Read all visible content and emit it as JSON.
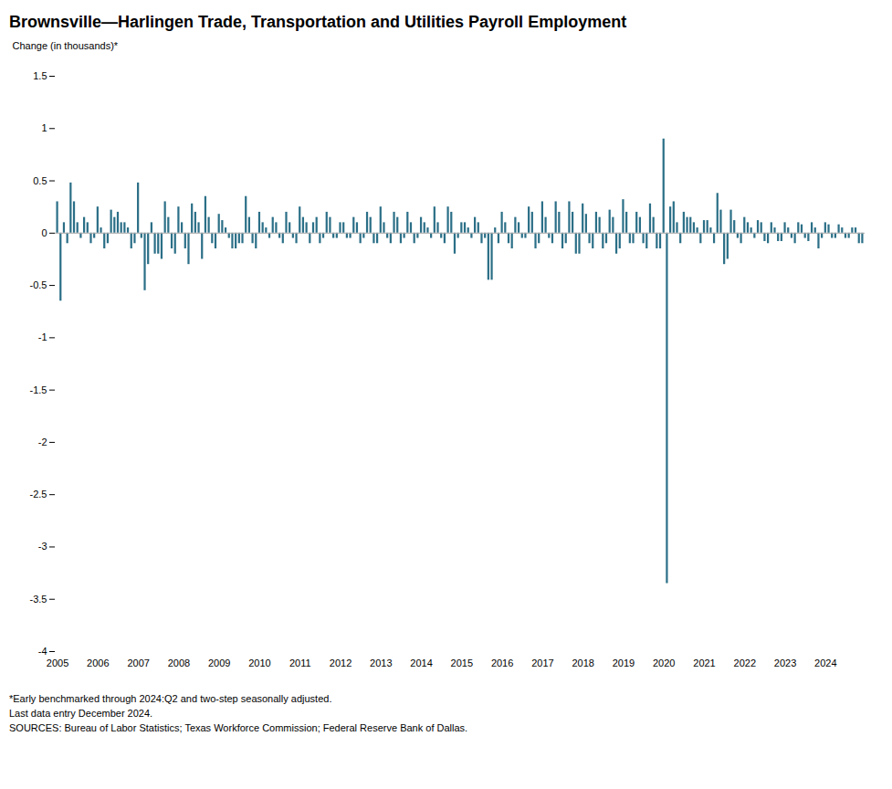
{
  "chart_data": {
    "type": "bar",
    "title": "Brownsville—Harlingen Trade, Transportation and Utilities Payroll Employment",
    "ylabel": "Change (in thousands)*",
    "annotations": [
      "*Early benchmarked through 2024:Q2  and two-step seasonally adjusted.",
      "Last data entry December 2024.",
      "SOURCES:  Bureau of Labor Statistics;  Texas Workforce Commission;  Federal Reserve Bank of Dallas."
    ],
    "color": "#2b6f87",
    "ylim": [
      -4,
      1.5
    ],
    "yticks": [
      -4,
      -3.5,
      -3,
      -2.5,
      -2,
      -1.5,
      -1,
      -0.5,
      0,
      0.5,
      1,
      1.5
    ],
    "grid": false,
    "categories": [
      "2005",
      null,
      null,
      null,
      null,
      null,
      null,
      null,
      null,
      null,
      null,
      null,
      "2006",
      null,
      null,
      null,
      null,
      null,
      null,
      null,
      null,
      null,
      null,
      null,
      "2007",
      null,
      null,
      null,
      null,
      null,
      null,
      null,
      null,
      null,
      null,
      null,
      "2008",
      null,
      null,
      null,
      null,
      null,
      null,
      null,
      null,
      null,
      null,
      null,
      "2009",
      null,
      null,
      null,
      null,
      null,
      null,
      null,
      null,
      null,
      null,
      null,
      "2010",
      null,
      null,
      null,
      null,
      null,
      null,
      null,
      null,
      null,
      null,
      null,
      "2011",
      null,
      null,
      null,
      null,
      null,
      null,
      null,
      null,
      null,
      null,
      null,
      "2012",
      null,
      null,
      null,
      null,
      null,
      null,
      null,
      null,
      null,
      null,
      null,
      "2013",
      null,
      null,
      null,
      null,
      null,
      null,
      null,
      null,
      null,
      null,
      null,
      "2014",
      null,
      null,
      null,
      null,
      null,
      null,
      null,
      null,
      null,
      null,
      null,
      "2015",
      null,
      null,
      null,
      null,
      null,
      null,
      null,
      null,
      null,
      null,
      null,
      "2016",
      null,
      null,
      null,
      null,
      null,
      null,
      null,
      null,
      null,
      null,
      null,
      "2017",
      null,
      null,
      null,
      null,
      null,
      null,
      null,
      null,
      null,
      null,
      null,
      "2018",
      null,
      null,
      null,
      null,
      null,
      null,
      null,
      null,
      null,
      null,
      null,
      "2019",
      null,
      null,
      null,
      null,
      null,
      null,
      null,
      null,
      null,
      null,
      null,
      "2020",
      null,
      null,
      null,
      null,
      null,
      null,
      null,
      null,
      null,
      null,
      null,
      "2021",
      null,
      null,
      null,
      null,
      null,
      null,
      null,
      null,
      null,
      null,
      null,
      "2022",
      null,
      null,
      null,
      null,
      null,
      null,
      null,
      null,
      null,
      null,
      null,
      "2023",
      null,
      null,
      null,
      null,
      null,
      null,
      null,
      null,
      null,
      null,
      null,
      "2024",
      null,
      null,
      null,
      null,
      null,
      null,
      null,
      null,
      null,
      null,
      null
    ],
    "values": [
      0.3,
      -0.65,
      0.1,
      -0.1,
      0.48,
      0.3,
      0.1,
      -0.05,
      0.15,
      0.1,
      -0.1,
      -0.05,
      0.25,
      0.05,
      -0.15,
      -0.1,
      0.22,
      0.15,
      0.2,
      0.1,
      0.1,
      0.05,
      -0.15,
      -0.1,
      0.48,
      -0.05,
      -0.55,
      -0.3,
      0.1,
      -0.2,
      -0.2,
      -0.25,
      0.3,
      0.15,
      -0.15,
      -0.2,
      0.25,
      0.1,
      -0.15,
      -0.3,
      0.28,
      0.2,
      0.1,
      -0.25,
      0.35,
      0.15,
      -0.1,
      -0.15,
      0.18,
      0.12,
      0.05,
      -0.05,
      -0.15,
      -0.15,
      -0.1,
      -0.1,
      0.35,
      0.15,
      -0.1,
      -0.15,
      0.2,
      0.1,
      0.05,
      -0.05,
      0.15,
      0.1,
      -0.05,
      -0.1,
      0.2,
      0.1,
      -0.05,
      -0.1,
      0.25,
      0.15,
      0.1,
      -0.1,
      0.1,
      0.15,
      -0.1,
      -0.05,
      0.2,
      0.15,
      -0.05,
      -0.05,
      0.1,
      0.1,
      -0.05,
      -0.05,
      0.15,
      0.1,
      -0.1,
      -0.05,
      0.2,
      0.15,
      -0.1,
      -0.1,
      0.25,
      0.1,
      -0.05,
      -0.1,
      0.2,
      0.15,
      -0.1,
      -0.05,
      0.2,
      0.1,
      -0.1,
      -0.05,
      0.15,
      0.1,
      0.05,
      -0.05,
      0.25,
      0.1,
      -0.05,
      -0.1,
      0.25,
      0.2,
      -0.2,
      -0.05,
      0.1,
      0.1,
      0.05,
      -0.05,
      0.15,
      0.1,
      -0.1,
      -0.05,
      -0.45,
      -0.45,
      0.05,
      -0.1,
      0.2,
      0.1,
      -0.1,
      -0.15,
      0.15,
      0.1,
      -0.05,
      -0.05,
      0.25,
      0.2,
      -0.15,
      -0.1,
      0.3,
      0.15,
      -0.05,
      -0.1,
      0.3,
      0.2,
      -0.15,
      -0.1,
      0.3,
      0.2,
      -0.2,
      -0.2,
      0.28,
      0.18,
      -0.1,
      -0.15,
      0.2,
      0.15,
      -0.15,
      -0.1,
      0.22,
      0.15,
      -0.2,
      -0.15,
      0.32,
      0.2,
      -0.1,
      -0.1,
      0.2,
      0.15,
      -0.1,
      -0.15,
      0.28,
      0.15,
      -0.15,
      -0.15,
      0.9,
      -3.35,
      0.25,
      0.3,
      0.1,
      -0.1,
      0.2,
      0.15,
      0.15,
      0.1,
      0.05,
      -0.1,
      0.12,
      0.12,
      0.05,
      -0.1,
      0.38,
      0.22,
      -0.3,
      -0.25,
      0.22,
      0.12,
      -0.05,
      -0.1,
      0.15,
      0.1,
      0.05,
      -0.05,
      0.12,
      0.1,
      -0.08,
      -0.1,
      0.1,
      0.05,
      -0.08,
      -0.08,
      0.1,
      0.05,
      -0.05,
      -0.1,
      0.1,
      0.08,
      -0.05,
      -0.08,
      0.1,
      0.05,
      -0.15,
      -0.05,
      0.1,
      0.08,
      -0.05,
      -0.05,
      0.08,
      0.05,
      -0.05,
      -0.05,
      0.05,
      0.05,
      -0.1,
      -0.1
    ]
  }
}
